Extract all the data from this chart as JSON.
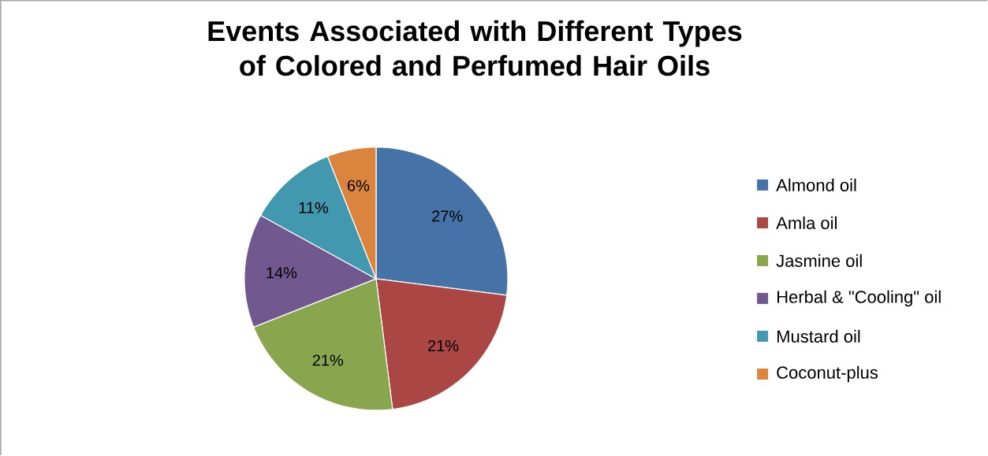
{
  "chart_data": {
    "type": "pie",
    "title": "Events Associated with Different Types of Colored and Perfumed Hair Oils",
    "categories": [
      "Almond oil",
      "Amla oil",
      "Jasmine oil",
      "Herbal & \"Cooling\" oil",
      "Mustard oil",
      "Coconut-plus"
    ],
    "values": [
      27,
      21,
      21,
      14,
      11,
      6
    ],
    "value_labels": [
      "27%",
      "21%",
      "21%",
      "14%",
      "11%",
      "6%"
    ],
    "colors": [
      "#4572a7",
      "#aa4643",
      "#89a54e",
      "#71588f",
      "#4198af",
      "#db843d"
    ],
    "legend": "right"
  }
}
